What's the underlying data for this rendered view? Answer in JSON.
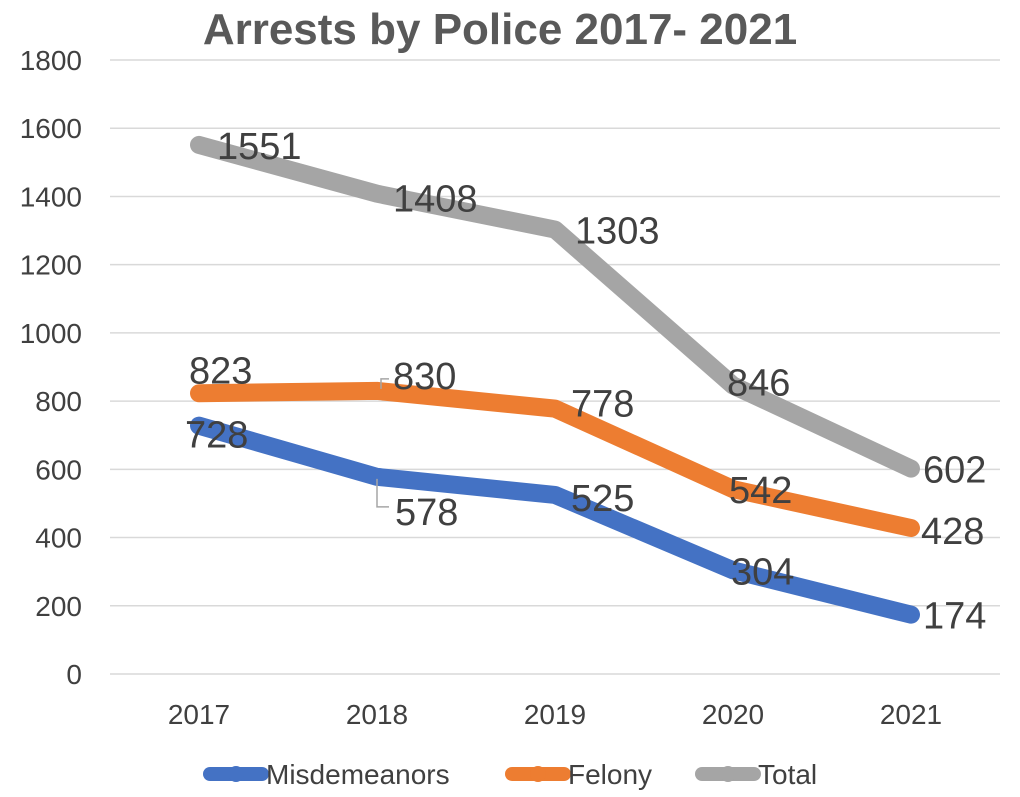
{
  "chart_data": {
    "type": "line",
    "title": "Arrests by Police 2017- 2021",
    "xlabel": "",
    "ylabel": "",
    "categories": [
      "2017",
      "2018",
      "2019",
      "2020",
      "2021"
    ],
    "ylim": [
      0,
      1800
    ],
    "yticks": [
      0,
      200,
      400,
      600,
      800,
      1000,
      1200,
      1400,
      1600,
      1800
    ],
    "grid": true,
    "legend_position": "bottom",
    "data_labels": true,
    "series": [
      {
        "name": "Misdemeanors",
        "values": [
          728,
          578,
          525,
          304,
          174
        ],
        "color": "#4472C4"
      },
      {
        "name": "Felony",
        "values": [
          823,
          830,
          778,
          542,
          428
        ],
        "color": "#ED7D31"
      },
      {
        "name": "Total",
        "values": [
          1551,
          1408,
          1303,
          846,
          602
        ],
        "color": "#A5A5A5"
      }
    ]
  }
}
